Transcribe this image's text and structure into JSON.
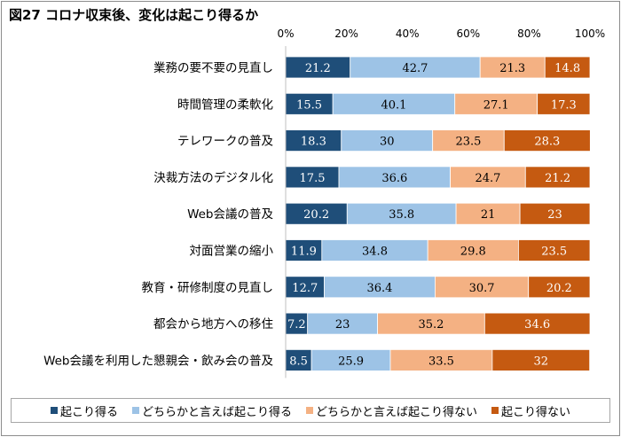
{
  "title": "図27 コロナ収束後、変化は起こり得るか",
  "chart_data": {
    "type": "bar",
    "orientation": "horizontal",
    "stacked": true,
    "percent_stacked": true,
    "xlim": [
      0,
      100
    ],
    "x_ticks": [
      "0%",
      "20%",
      "40%",
      "60%",
      "80%",
      "100%"
    ],
    "x_ticks_position": "top",
    "grid": false,
    "legend_position": "bottom",
    "categories": [
      "業務の要不要の見直し",
      "時間管理の柔軟化",
      "テレワークの普及",
      "決裁方法のデジタル化",
      "Web会議の普及",
      "対面営業の縮小",
      "教育・研修制度の見直し",
      "都会から地方への移住",
      "Web会議を利用した懇親会・飲み会の普及"
    ],
    "series": [
      {
        "name": "起こり得る",
        "color": "#1f4e79",
        "label_color": "#ffffff",
        "values": [
          21.2,
          15.5,
          18.3,
          17.5,
          20.2,
          11.9,
          12.7,
          7.2,
          8.5
        ]
      },
      {
        "name": "どちらかと言えば起こり得る",
        "color": "#9dc3e6",
        "label_color": "#000000",
        "values": [
          42.7,
          40.1,
          30,
          36.6,
          35.8,
          34.8,
          36.4,
          23,
          25.9
        ]
      },
      {
        "name": "どちらかと言えば起こり得ない",
        "color": "#f4b183",
        "label_color": "#000000",
        "values": [
          21.3,
          27.1,
          23.5,
          24.7,
          21,
          29.8,
          30.7,
          35.2,
          33.5
        ]
      },
      {
        "name": "起こり得ない",
        "color": "#c55a11",
        "label_color": "#ffffff",
        "values": [
          14.8,
          17.3,
          28.3,
          21.2,
          23,
          23.5,
          20.2,
          34.6,
          32
        ]
      }
    ]
  }
}
